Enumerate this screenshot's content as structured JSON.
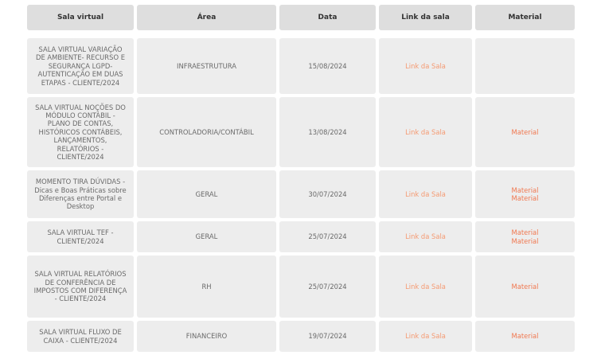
{
  "headers": [
    "Sala virtual",
    "Área",
    "Data",
    "Link da sala",
    "Material"
  ],
  "rows": [
    {
      "sala": "SALA VIRTUAL VARIAÇÃO DE AMBIENTE- RECURSO E SEGURANÇA LGPD-AUTENTICAÇÃO EM DUAS ETAPAS - CLIENTE/2024",
      "area": "INFRAESTRUTURA",
      "data": "15/08/2024",
      "link": "Link da Sala",
      "materials": [],
      "height": 70
    },
    {
      "sala": "SALA VIRTUAL NOÇÕES DO MÓDULO CONTÁBIL - PLANO DE CONTAS, HISTÓRICOS CONTÁBEIS, LANÇAMENTOS, RELATÓRIOS - CLIENTE/2024",
      "area": "CONTROLADORIA/CONTÁBIL",
      "data": "13/08/2024",
      "link": "Link da Sala",
      "materials": [
        "Material"
      ],
      "height": 88
    },
    {
      "sala": "MOMENTO TIRA DÚVIDAS - Dicas e Boas Práticas sobre Diferenças entre Portal e Desktop",
      "area": "GERAL",
      "data": "30/07/2024",
      "link": "Link da Sala",
      "materials": [
        "Material",
        "Material"
      ],
      "height": 60
    },
    {
      "sala": "SALA VIRTUAL TEF - CLIENTE/2024",
      "area": "GERAL",
      "data": "25/07/2024",
      "link": "Link da Sala",
      "materials": [
        "Material",
        "Material"
      ],
      "height": 39
    },
    {
      "sala": "SALA VIRTUAL RELATÓRIOS DE CONFERÊNCIA DE IMPOSTOS COM DIFERENÇA - CLIENTE/2024",
      "area": "RH",
      "data": "25/07/2024",
      "link": "Link da Sala",
      "materials": [
        "Material"
      ],
      "height": 78
    },
    {
      "sala": "SALA VIRTUAL FLUXO DE CAIXA - CLIENTE/2024",
      "area": "FINANCEIRO",
      "data": "19/07/2024",
      "link": "Link da Sala",
      "materials": [
        "Material"
      ],
      "height": 39
    }
  ]
}
